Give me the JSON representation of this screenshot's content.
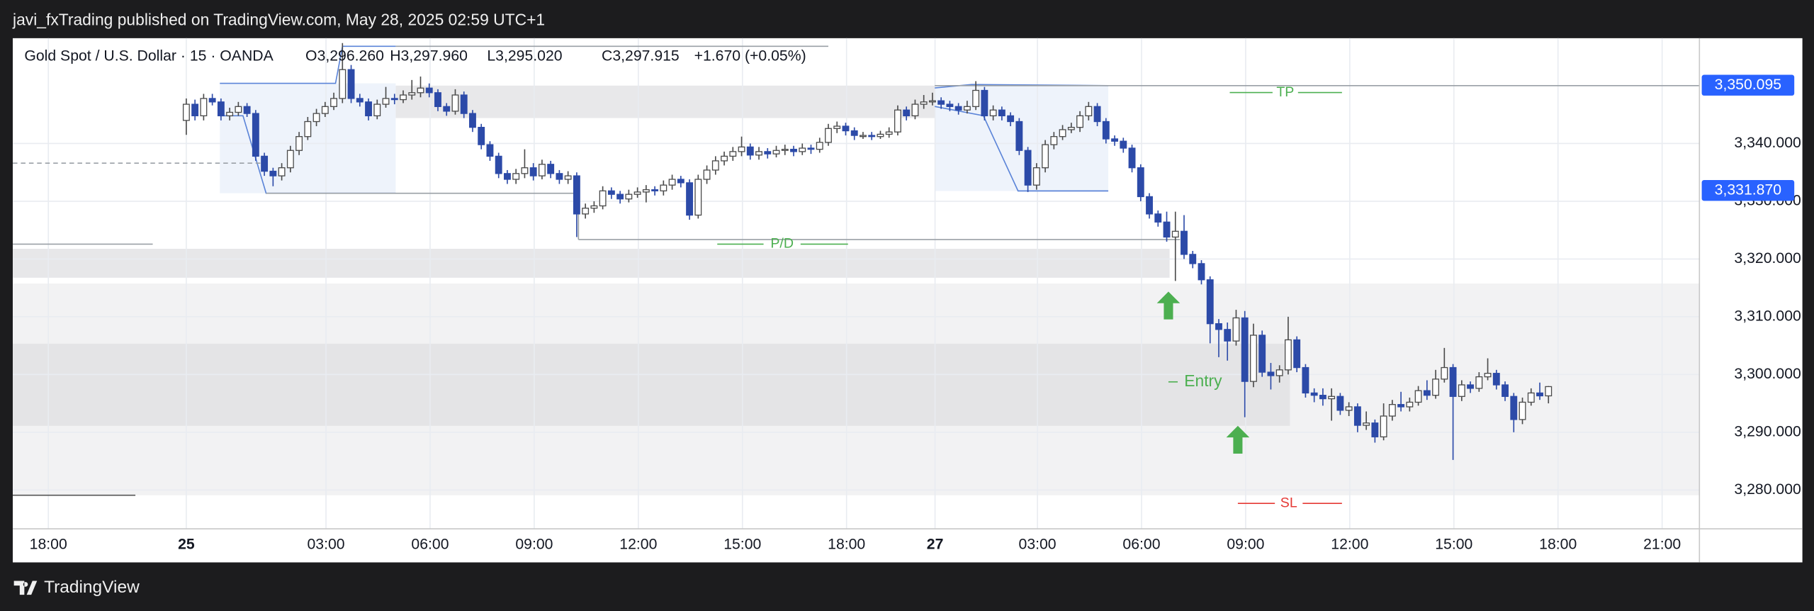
{
  "header": {
    "publisher": "javi_fxTrading published on TradingView.com, May 28, 2025 02:59 UTC+1"
  },
  "footer": {
    "brand": "TradingView"
  },
  "chart_data": {
    "type": "candlestick",
    "legend": {
      "symbol": "Gold Spot / U.S. Dollar · 15 · OANDA",
      "open": "O3,296.260",
      "high": "H3,297.960",
      "low": "L3,295.020",
      "close": "C3,297.915",
      "change": "+1.670 (+0.05%)"
    },
    "annotations": {
      "tp": "TP",
      "pd": "P/D",
      "entry": "Entry",
      "sl": "SL"
    },
    "price_tags": [
      {
        "value": 3350.095,
        "label": "3,350.095"
      },
      {
        "value": 3331.87,
        "label": "3,331.870"
      }
    ],
    "up_color": "#ffffff",
    "up_edge": "#4a4a4a",
    "down_color": "#2c4aa8",
    "down_edge": "#2c4aa8",
    "grid": true,
    "ylim": [
      3273.27,
      3358.24
    ],
    "yticks": [
      {
        "value": 3280,
        "label": "3,280.000"
      },
      {
        "value": 3290,
        "label": "3,290.000"
      },
      {
        "value": 3300,
        "label": "3,300.000"
      },
      {
        "value": 3310,
        "label": "3,310.000"
      },
      {
        "value": 3320,
        "label": "3,320.000"
      },
      {
        "value": 3330,
        "label": "3,330.000"
      },
      {
        "value": 3340,
        "label": "3,340.000"
      }
    ],
    "xlim": [
      -20,
      174.4
    ],
    "xticks": [
      {
        "value": -15.9,
        "label": "18:00"
      },
      {
        "value": 0,
        "label": "25",
        "bold": true
      },
      {
        "value": 16.1,
        "label": "03:00"
      },
      {
        "value": 28.1,
        "label": "06:00"
      },
      {
        "value": 40.1,
        "label": "09:00"
      },
      {
        "value": 52.1,
        "label": "12:00"
      },
      {
        "value": 64.1,
        "label": "15:00"
      },
      {
        "value": 76.1,
        "label": "18:00"
      },
      {
        "value": 86.3,
        "label": "27",
        "bold": true
      },
      {
        "value": 98.1,
        "label": "03:00"
      },
      {
        "value": 110.1,
        "label": "06:00"
      },
      {
        "value": 122.1,
        "label": "09:00"
      },
      {
        "value": 134.1,
        "label": "12:00"
      },
      {
        "value": 146.1,
        "label": "15:00"
      },
      {
        "value": 158.1,
        "label": "18:00"
      },
      {
        "value": 170.1,
        "label": "21:00"
      }
    ],
    "categories": [
      null,
      null,
      null,
      null,
      null,
      null,
      null,
      null,
      null,
      null,
      null,
      null,
      null,
      null,
      null,
      null,
      null,
      null,
      null,
      null,
      null,
      null,
      null,
      null,
      null,
      null,
      null,
      null,
      null,
      null,
      null,
      null,
      null,
      null,
      null,
      null,
      null,
      null,
      null,
      null,
      null,
      null,
      null,
      null,
      null,
      null,
      null,
      null,
      null,
      null,
      null,
      null,
      null,
      null,
      null,
      null,
      null,
      null,
      null,
      null,
      null,
      null,
      null,
      null,
      null,
      null,
      null,
      null,
      null,
      null,
      null,
      null,
      null,
      null,
      null,
      null,
      null,
      null,
      null,
      null,
      null,
      null,
      null,
      null,
      null,
      null,
      null,
      null,
      null,
      null,
      null,
      null,
      null,
      null,
      null,
      null,
      null,
      null,
      null,
      null,
      null,
      null,
      null,
      null,
      null,
      null,
      null,
      null,
      null,
      null,
      null,
      null,
      null,
      null,
      null,
      null,
      null,
      null,
      null,
      null,
      null,
      null,
      null,
      null,
      null,
      null,
      null,
      null,
      null,
      null,
      null,
      null,
      null,
      null,
      null,
      null,
      null,
      null,
      null,
      null,
      null,
      null,
      null,
      null,
      null,
      null,
      null,
      null,
      null,
      null,
      null,
      null,
      null,
      null,
      null,
      null,
      null,
      null
    ],
    "ohlc": [
      [
        3344.0,
        3347.8,
        3341.5,
        3346.8
      ],
      [
        3346.8,
        3347.6,
        3344.0,
        3344.8
      ],
      [
        3344.8,
        3348.6,
        3344.0,
        3347.8
      ],
      [
        3347.8,
        3348.6,
        3346.6,
        3347.2
      ],
      [
        3347.2,
        3347.8,
        3344.0,
        3344.8
      ],
      [
        3344.8,
        3346.2,
        3344.0,
        3345.4
      ],
      [
        3345.4,
        3347.2,
        3344.8,
        3346.4
      ],
      [
        3346.4,
        3347.0,
        3344.6,
        3345.2
      ],
      [
        3345.2,
        3345.8,
        3337.0,
        3337.8
      ],
      [
        3337.8,
        3338.4,
        3334.4,
        3335.2
      ],
      [
        3335.2,
        3335.8,
        3332.6,
        3334.4
      ],
      [
        3334.4,
        3336.6,
        3333.6,
        3335.8
      ],
      [
        3335.8,
        3339.6,
        3335.0,
        3338.8
      ],
      [
        3338.8,
        3342.0,
        3338.0,
        3341.2
      ],
      [
        3341.2,
        3344.6,
        3340.6,
        3343.8
      ],
      [
        3343.8,
        3346.0,
        3343.0,
        3345.2
      ],
      [
        3345.2,
        3347.2,
        3344.6,
        3346.4
      ],
      [
        3346.4,
        3348.8,
        3345.8,
        3347.8
      ],
      [
        3347.8,
        3357.4,
        3347.0,
        3352.8
      ],
      [
        3352.8,
        3353.6,
        3347.0,
        3347.8
      ],
      [
        3347.8,
        3348.6,
        3346.4,
        3347.2
      ],
      [
        3347.2,
        3347.8,
        3344.0,
        3344.8
      ],
      [
        3344.8,
        3347.6,
        3344.2,
        3346.8
      ],
      [
        3346.8,
        3349.8,
        3346.2,
        3347.8
      ],
      [
        3347.8,
        3348.6,
        3346.8,
        3347.6
      ],
      [
        3347.6,
        3349.2,
        3347.0,
        3348.4
      ],
      [
        3348.4,
        3351.0,
        3347.6,
        3348.8
      ],
      [
        3348.8,
        3351.6,
        3348.0,
        3349.6
      ],
      [
        3349.6,
        3350.4,
        3348.0,
        3348.8
      ],
      [
        3348.8,
        3349.4,
        3345.6,
        3346.4
      ],
      [
        3346.4,
        3347.0,
        3344.8,
        3345.6
      ],
      [
        3345.6,
        3349.4,
        3345.0,
        3348.4
      ],
      [
        3348.4,
        3349.0,
        3344.4,
        3345.2
      ],
      [
        3345.2,
        3345.8,
        3342.0,
        3342.8
      ],
      [
        3342.8,
        3343.4,
        3339.0,
        3339.8
      ],
      [
        3339.8,
        3340.4,
        3337.0,
        3337.8
      ],
      [
        3337.8,
        3338.4,
        3334.0,
        3334.8
      ],
      [
        3334.8,
        3335.4,
        3333.0,
        3333.8
      ],
      [
        3333.8,
        3335.6,
        3333.0,
        3334.8
      ],
      [
        3334.8,
        3339.0,
        3334.0,
        3335.8
      ],
      [
        3335.8,
        3336.6,
        3333.6,
        3334.4
      ],
      [
        3334.4,
        3337.2,
        3333.8,
        3336.4
      ],
      [
        3336.4,
        3337.0,
        3334.0,
        3334.8
      ],
      [
        3334.8,
        3335.4,
        3333.0,
        3333.8
      ],
      [
        3333.8,
        3335.2,
        3333.0,
        3334.4
      ],
      [
        3334.4,
        3335.0,
        3323.8,
        3327.8
      ],
      [
        3327.8,
        3329.6,
        3327.0,
        3328.8
      ],
      [
        3328.8,
        3330.0,
        3328.0,
        3329.2
      ],
      [
        3329.2,
        3332.6,
        3328.6,
        3331.8
      ],
      [
        3331.8,
        3332.4,
        3330.4,
        3331.2
      ],
      [
        3331.2,
        3331.8,
        3329.6,
        3330.4
      ],
      [
        3330.4,
        3332.0,
        3329.8,
        3331.2
      ],
      [
        3331.2,
        3332.4,
        3330.6,
        3331.6
      ],
      [
        3331.6,
        3332.8,
        3329.8,
        3332.0
      ],
      [
        3332.0,
        3332.6,
        3331.0,
        3331.8
      ],
      [
        3331.8,
        3333.6,
        3331.0,
        3332.8
      ],
      [
        3332.8,
        3334.6,
        3332.0,
        3333.8
      ],
      [
        3333.8,
        3334.4,
        3332.4,
        3333.2
      ],
      [
        3333.2,
        3333.8,
        3326.8,
        3327.6
      ],
      [
        3327.6,
        3334.6,
        3327.0,
        3333.8
      ],
      [
        3333.8,
        3336.2,
        3333.0,
        3335.4
      ],
      [
        3335.4,
        3337.8,
        3334.6,
        3337.0
      ],
      [
        3337.0,
        3338.6,
        3336.2,
        3337.8
      ],
      [
        3337.8,
        3339.4,
        3337.0,
        3338.6
      ],
      [
        3338.6,
        3341.2,
        3337.8,
        3339.4
      ],
      [
        3339.4,
        3340.0,
        3337.2,
        3338.0
      ],
      [
        3338.0,
        3339.4,
        3337.2,
        3338.6
      ],
      [
        3338.6,
        3339.2,
        3337.4,
        3338.2
      ],
      [
        3338.2,
        3339.6,
        3337.6,
        3338.8
      ],
      [
        3338.8,
        3339.8,
        3338.0,
        3339.0
      ],
      [
        3339.0,
        3339.6,
        3337.8,
        3338.6
      ],
      [
        3338.6,
        3340.0,
        3338.0,
        3339.2
      ],
      [
        3339.2,
        3339.8,
        3338.2,
        3339.0
      ],
      [
        3339.0,
        3341.0,
        3338.4,
        3340.2
      ],
      [
        3340.2,
        3343.4,
        3339.6,
        3342.6
      ],
      [
        3342.6,
        3343.8,
        3341.8,
        3343.0
      ],
      [
        3343.0,
        3343.6,
        3341.4,
        3342.2
      ],
      [
        3342.2,
        3342.8,
        3340.6,
        3341.4
      ],
      [
        3341.4,
        3342.0,
        3340.8,
        3341.4
      ],
      [
        3341.4,
        3342.0,
        3340.6,
        3341.2
      ],
      [
        3341.2,
        3342.2,
        3340.8,
        3341.6
      ],
      [
        3341.6,
        3342.8,
        3341.0,
        3342.0
      ],
      [
        3342.0,
        3346.6,
        3341.4,
        3345.8
      ],
      [
        3345.8,
        3346.4,
        3344.0,
        3344.8
      ],
      [
        3344.8,
        3347.6,
        3344.2,
        3346.8
      ],
      [
        3346.8,
        3348.4,
        3346.0,
        3347.2
      ],
      [
        3347.2,
        3348.8,
        3346.6,
        3347.4
      ],
      [
        3347.4,
        3348.0,
        3346.0,
        3346.8
      ],
      [
        3346.8,
        3347.4,
        3345.6,
        3346.4
      ],
      [
        3346.4,
        3347.0,
        3345.0,
        3345.8
      ],
      [
        3345.8,
        3347.4,
        3345.2,
        3346.4
      ],
      [
        3346.4,
        3350.8,
        3345.8,
        3349.2
      ],
      [
        3349.2,
        3349.8,
        3344.0,
        3344.8
      ],
      [
        3344.8,
        3346.6,
        3344.0,
        3345.8
      ],
      [
        3345.8,
        3346.4,
        3344.0,
        3344.8
      ],
      [
        3344.8,
        3345.4,
        3343.0,
        3343.8
      ],
      [
        3343.8,
        3344.4,
        3338.0,
        3338.8
      ],
      [
        3338.8,
        3339.4,
        3331.6,
        3332.8
      ],
      [
        3332.8,
        3336.6,
        3332.0,
        3335.8
      ],
      [
        3335.8,
        3340.6,
        3335.0,
        3339.8
      ],
      [
        3339.8,
        3342.0,
        3339.0,
        3341.2
      ],
      [
        3341.2,
        3343.2,
        3340.6,
        3342.4
      ],
      [
        3342.4,
        3343.6,
        3341.8,
        3342.8
      ],
      [
        3342.8,
        3345.6,
        3342.0,
        3344.8
      ],
      [
        3344.8,
        3347.2,
        3344.0,
        3346.4
      ],
      [
        3346.4,
        3347.0,
        3343.0,
        3343.8
      ],
      [
        3343.8,
        3344.4,
        3340.0,
        3340.8
      ],
      [
        3340.8,
        3341.4,
        3339.6,
        3340.4
      ],
      [
        3340.4,
        3341.0,
        3338.4,
        3339.2
      ],
      [
        3339.2,
        3339.8,
        3335.0,
        3335.8
      ],
      [
        3335.8,
        3336.4,
        3330.0,
        3330.8
      ],
      [
        3330.8,
        3331.4,
        3327.0,
        3327.8
      ],
      [
        3327.8,
        3328.4,
        3325.6,
        3326.4
      ],
      [
        3326.4,
        3328.2,
        3323.0,
        3323.8
      ],
      [
        3323.8,
        3328.2,
        3316.2,
        3324.8
      ],
      [
        3324.8,
        3327.6,
        3320.0,
        3320.8
      ],
      [
        3320.8,
        3321.4,
        3318.4,
        3319.2
      ],
      [
        3319.2,
        3319.8,
        3315.6,
        3316.4
      ],
      [
        3316.4,
        3317.0,
        3305.4,
        3308.8
      ],
      [
        3308.8,
        3309.6,
        3303.0,
        3307.8
      ],
      [
        3307.8,
        3309.0,
        3302.4,
        3305.8
      ],
      [
        3305.8,
        3311.2,
        3305.0,
        3309.8
      ],
      [
        3309.8,
        3311.0,
        3292.6,
        3298.8
      ],
      [
        3298.8,
        3308.8,
        3297.8,
        3306.8
      ],
      [
        3306.8,
        3307.6,
        3299.6,
        3300.4
      ],
      [
        3300.4,
        3302.0,
        3297.4,
        3299.8
      ],
      [
        3299.8,
        3301.6,
        3298.6,
        3300.8
      ],
      [
        3300.8,
        3310.0,
        3300.0,
        3306.0
      ],
      [
        3306.0,
        3306.6,
        3300.4,
        3301.2
      ],
      [
        3301.2,
        3301.8,
        3296.0,
        3296.8
      ],
      [
        3296.8,
        3297.6,
        3295.2,
        3296.4
      ],
      [
        3296.4,
        3297.6,
        3294.6,
        3295.8
      ],
      [
        3295.8,
        3297.6,
        3292.0,
        3296.2
      ],
      [
        3296.2,
        3296.8,
        3293.0,
        3293.8
      ],
      [
        3293.8,
        3295.2,
        3292.8,
        3294.4
      ],
      [
        3294.4,
        3295.0,
        3290.0,
        3291.2
      ],
      [
        3291.2,
        3293.6,
        3290.4,
        3291.6
      ],
      [
        3291.6,
        3292.2,
        3288.2,
        3289.2
      ],
      [
        3289.2,
        3295.0,
        3288.6,
        3292.8
      ],
      [
        3292.8,
        3295.6,
        3292.0,
        3294.8
      ],
      [
        3294.8,
        3297.0,
        3293.6,
        3294.4
      ],
      [
        3294.4,
        3296.0,
        3293.6,
        3295.2
      ],
      [
        3295.2,
        3298.0,
        3294.6,
        3297.2
      ],
      [
        3297.2,
        3299.0,
        3295.6,
        3296.4
      ],
      [
        3296.4,
        3300.8,
        3295.8,
        3299.2
      ],
      [
        3299.2,
        3304.6,
        3298.6,
        3301.2
      ],
      [
        3301.2,
        3301.8,
        3285.2,
        3296.2
      ],
      [
        3296.2,
        3299.0,
        3295.4,
        3298.2
      ],
      [
        3298.2,
        3298.8,
        3296.8,
        3297.6
      ],
      [
        3297.6,
        3300.4,
        3297.0,
        3299.6
      ],
      [
        3299.6,
        3302.8,
        3299.0,
        3300.2
      ],
      [
        3300.2,
        3300.8,
        3297.4,
        3298.2
      ],
      [
        3298.2,
        3298.8,
        3295.4,
        3296.2
      ],
      [
        3296.2,
        3296.8,
        3290.0,
        3292.2
      ],
      [
        3292.2,
        3296.0,
        3291.4,
        3295.2
      ],
      [
        3295.2,
        3297.6,
        3294.6,
        3296.8
      ],
      [
        3296.8,
        3298.6,
        3295.6,
        3296.3
      ],
      [
        3296.3,
        3298.0,
        3295.0,
        3297.9
      ]
    ]
  }
}
